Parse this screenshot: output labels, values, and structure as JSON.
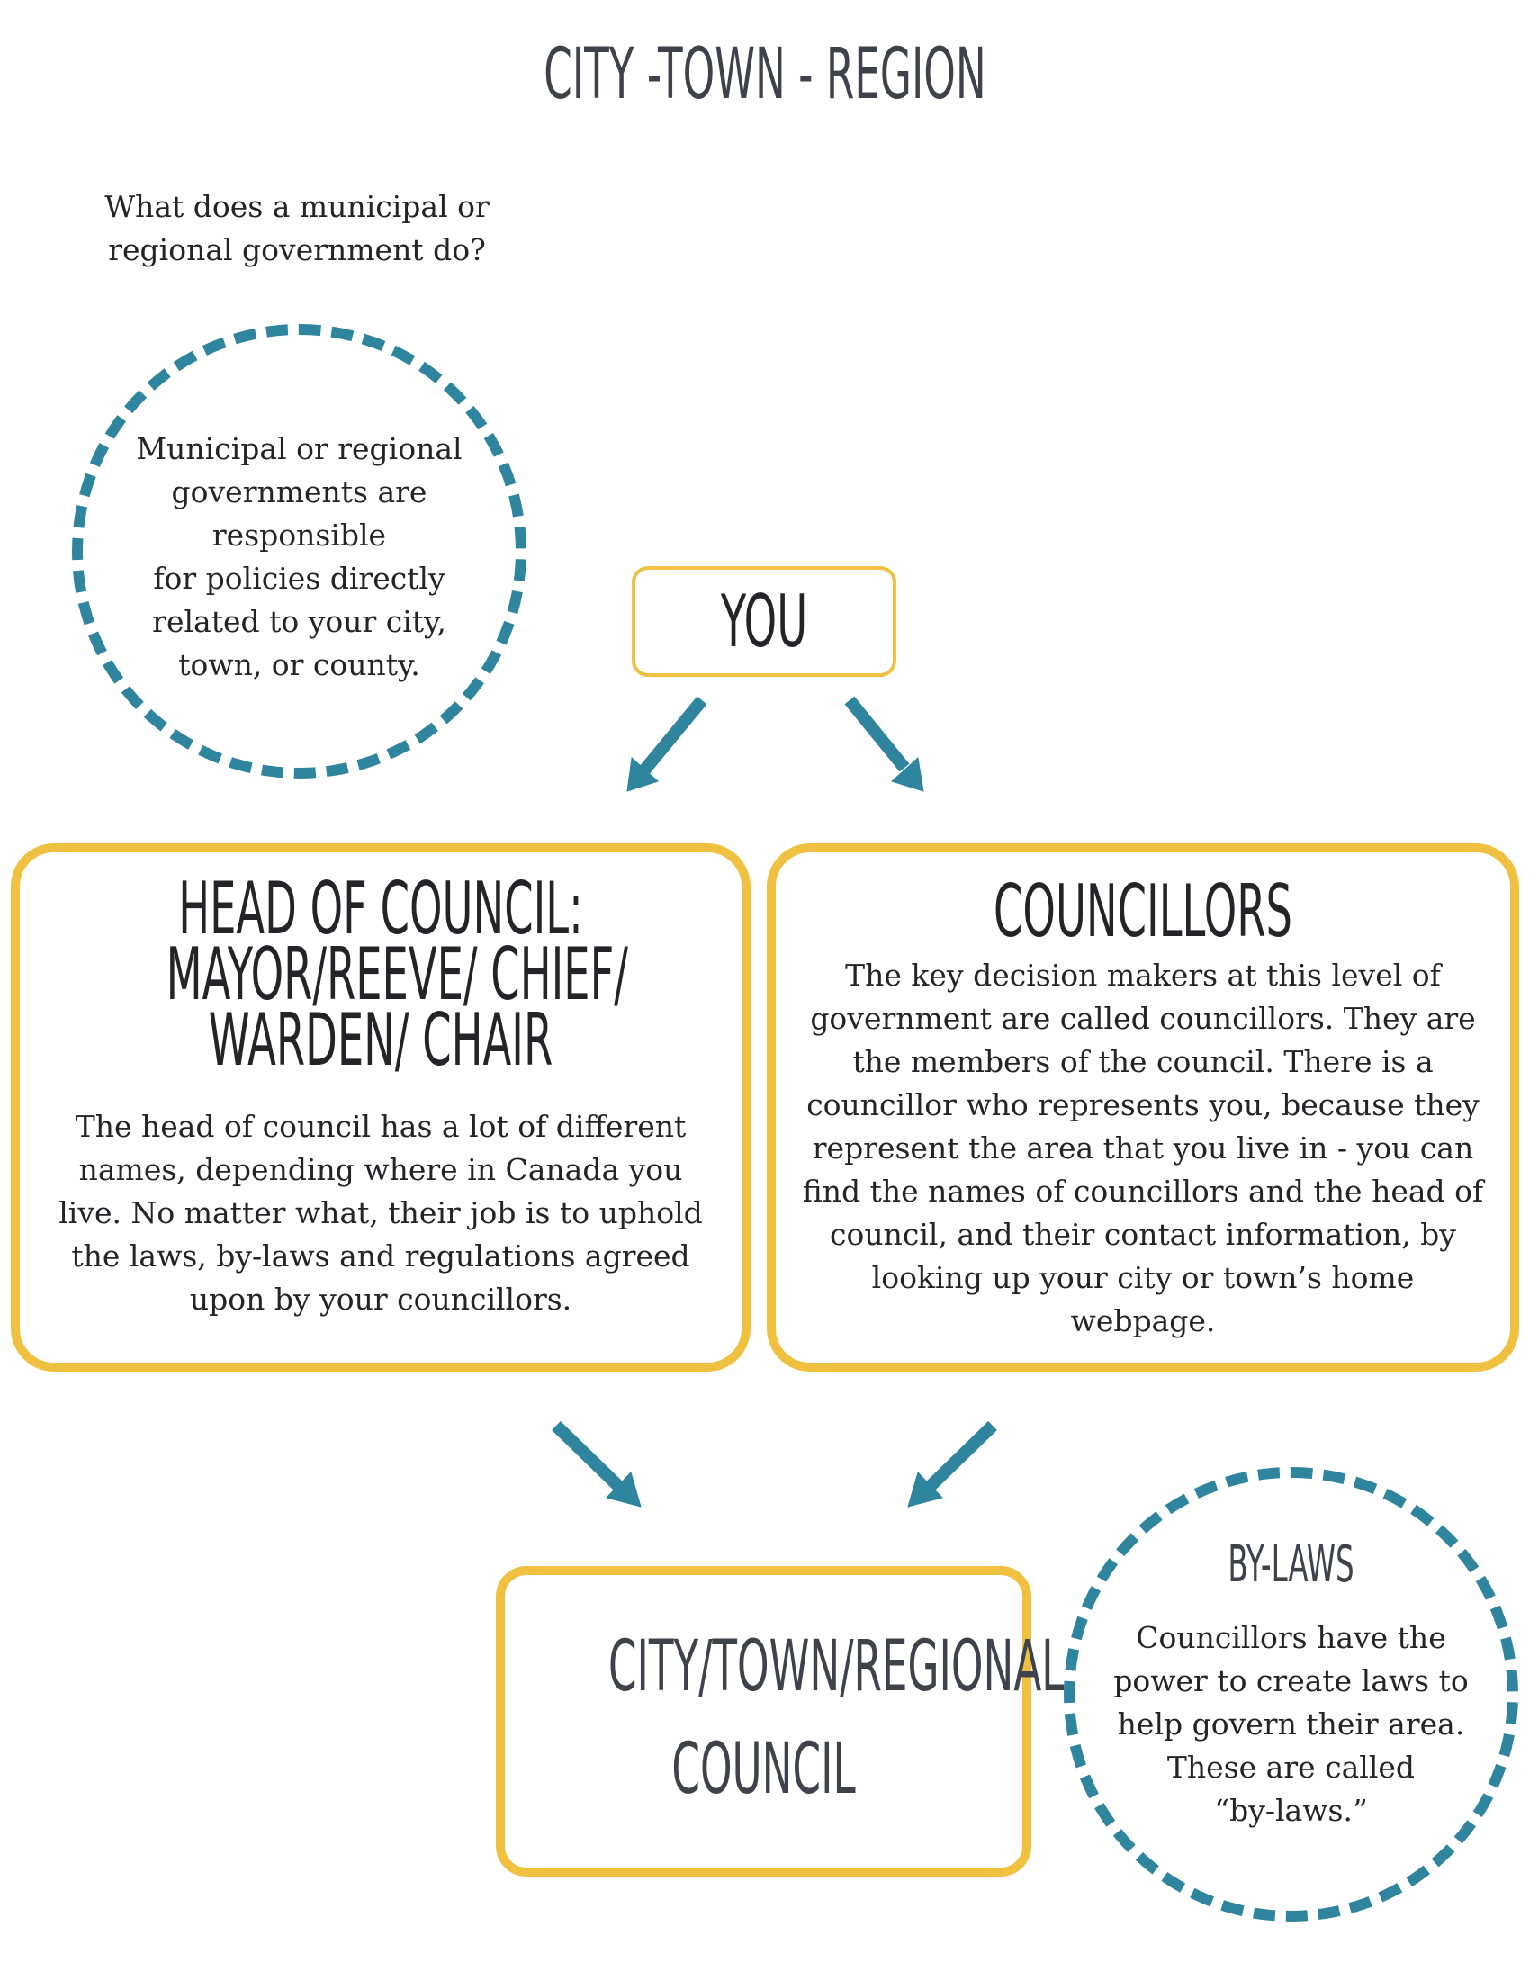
{
  "title": "CITY -TOWN - REGION",
  "question": {
    "lines": [
      "What does a municipal or",
      "regional government do?"
    ]
  },
  "top_circle": {
    "lines": [
      "Municipal or regional",
      "governments are",
      "responsible",
      "for policies directly",
      "related to your city,",
      "town, or county."
    ]
  },
  "you_box": {
    "label": "YOU"
  },
  "head_of_council": {
    "title_lines": [
      "HEAD OF COUNCIL:",
      "MAYOR/REEVE/ CHIEF/",
      "WARDEN/ CHAIR"
    ],
    "text_lines": [
      "The head of council has a lot of different",
      "names, depending where in Canada you",
      "live. No matter what, their job is to uphold",
      "the laws, by-laws and regulations agreed",
      "upon by your councillors."
    ]
  },
  "councillors": {
    "title": "COUNCILLORS",
    "text_lines": [
      "The key decision makers at this level of",
      "government are called councillors. They are",
      "the members of the council. There is a",
      "councillor who represents you, because they",
      "represent the area that you live in - you can",
      "find the names of councillors and the head of",
      "council, and their contact information, by",
      "looking up your city or town’s home",
      "webpage."
    ]
  },
  "council_box": {
    "title_lines": [
      "CITY/TOWN/REGIONAL",
      "COUNCIL"
    ]
  },
  "bylaws_circle": {
    "title": "BY-LAWS",
    "text_lines": [
      "Councillors have the",
      "power to create laws to",
      "help govern their area.",
      "These are called",
      "“by-laws.”"
    ]
  },
  "colors": {
    "accent_yellow": "#f0c040",
    "accent_teal": "#2f849e",
    "heading_dark": "#3d424b",
    "text_dark": "#222428"
  }
}
